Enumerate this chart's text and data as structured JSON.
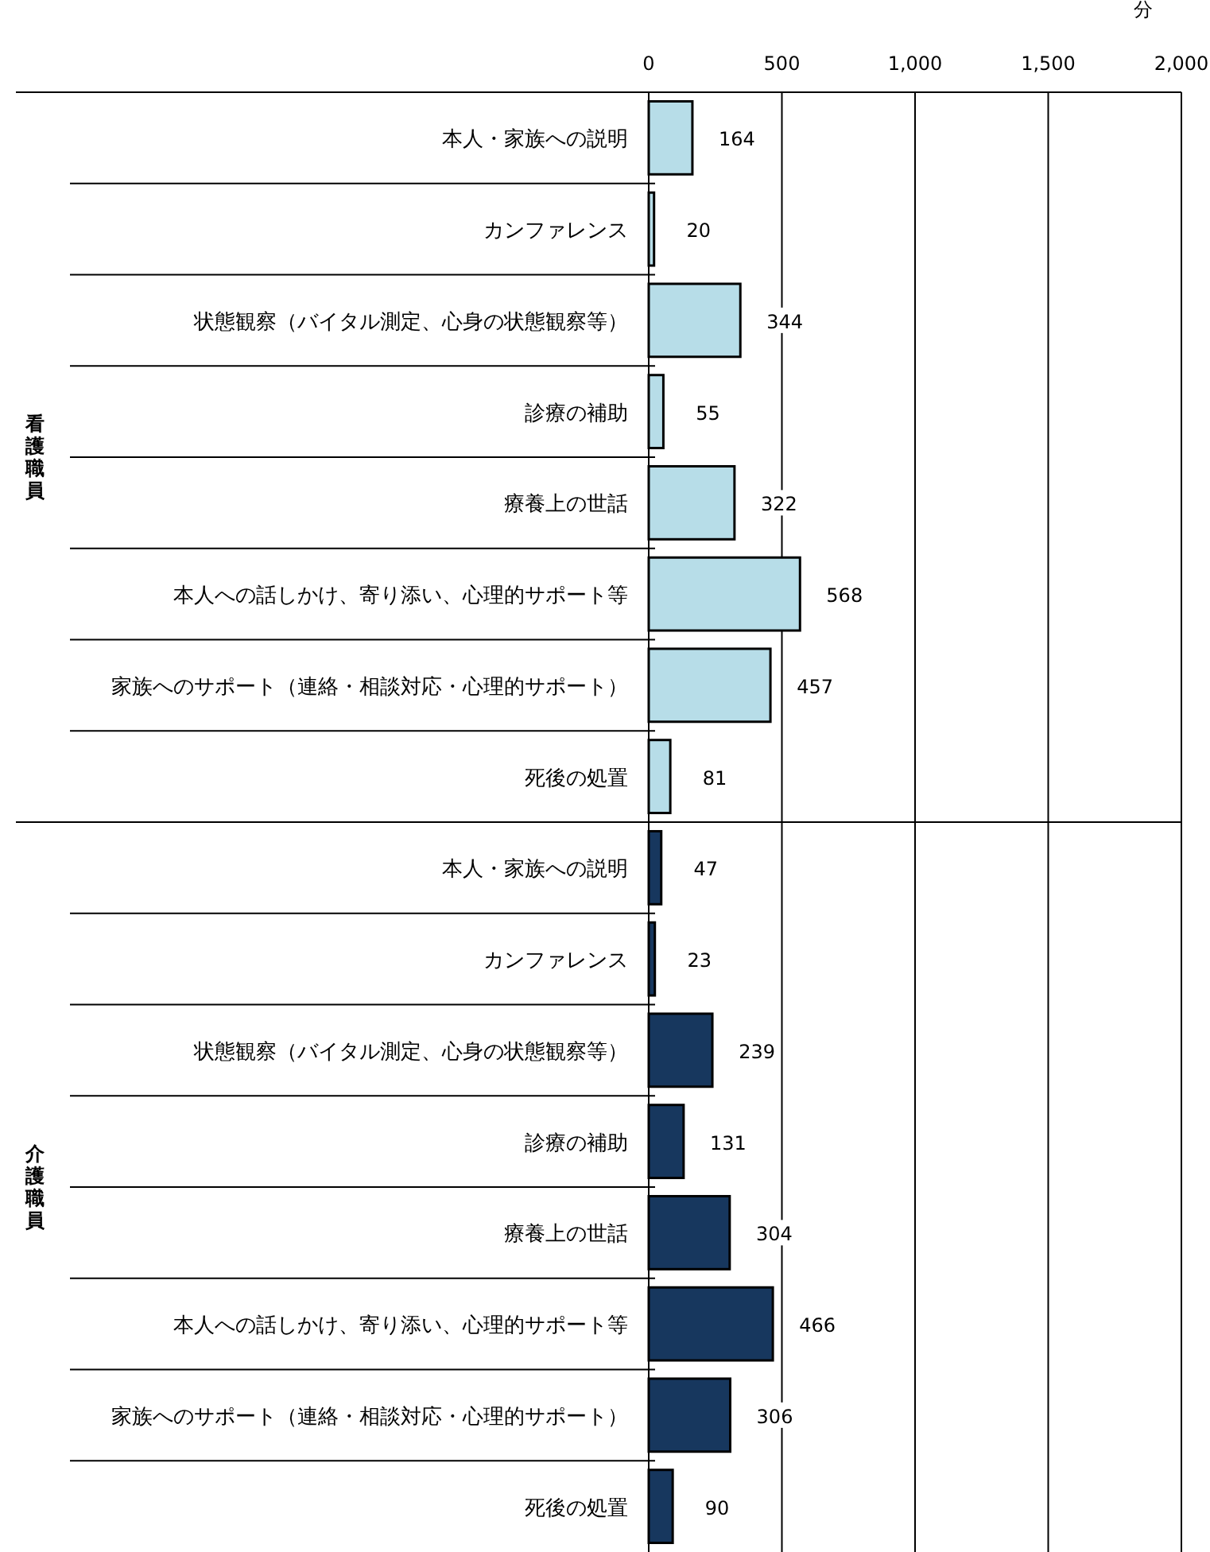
{
  "chart_data": [
    {
      "type": "bar",
      "orientation": "horizontal",
      "ylabel": "看護職員",
      "xlabel": "分",
      "categories": [
        "本人・家族への説明",
        "カンファレンス",
        "状態観察（バイタル測定、心身の状態観察等）",
        "診療の補助",
        "療養上の世話",
        "本人への話しかけ、寄り添い、心理的サポート等",
        "家族へのサポート（連絡・相談対応・心理的サポート）",
        "死後の処置"
      ],
      "values": [
        164,
        20,
        344,
        55,
        322,
        568,
        457,
        81
      ],
      "color": "#b7dde8",
      "xlim": [
        0,
        2000
      ],
      "xticks": [
        0,
        {
          "value": 500,
          "label": "500"
        },
        {
          "value": 1000,
          "label": "1,000"
        },
        {
          "value": 1500,
          "label": "1,500"
        },
        {
          "value": 2000,
          "label": "2,000"
        }
      ],
      "grid": "x",
      "data_labels": true
    },
    {
      "type": "bar",
      "orientation": "horizontal",
      "ylabel": "介護職員",
      "categories": [
        "本人・家族への説明",
        "カンファレンス",
        "状態観察（バイタル測定、心身の状態観察等）",
        "診療の補助",
        "療養上の世話",
        "本人への話しかけ、寄り添い、心理的サポート等",
        "家族へのサポート（連絡・相談対応・心理的サポート）",
        "死後の処置"
      ],
      "values": [
        47,
        23,
        239,
        131,
        304,
        466,
        306,
        90
      ],
      "color": "#17375e",
      "xlim": [
        0,
        2000
      ],
      "xticks": [
        {
          "value": 0,
          "label": null
        },
        {
          "value": 500,
          "label": null
        },
        {
          "value": 1000,
          "label": null
        },
        {
          "value": 1500,
          "label": null
        },
        {
          "value": 2000,
          "label": null
        }
      ],
      "grid": "x",
      "data_labels": true,
      "tick_labels": "y"
    }
  ]
}
